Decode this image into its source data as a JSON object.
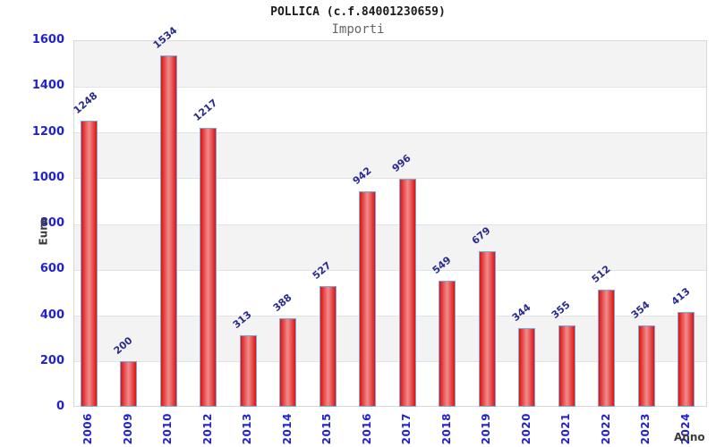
{
  "header": {
    "title": "POLLICA (c.f.84001230659)",
    "subtitle": "Importi"
  },
  "axes": {
    "y_label": "Euro",
    "x_label": "Anno"
  },
  "chart_data": {
    "type": "bar",
    "title": "POLLICA (c.f.84001230659)",
    "subtitle": "Importi",
    "xlabel": "Anno",
    "ylabel": "Euro",
    "categories": [
      "2006",
      "2009",
      "2010",
      "2012",
      "2013",
      "2014",
      "2015",
      "2016",
      "2017",
      "2018",
      "2019",
      "2020",
      "2021",
      "2022",
      "2023",
      "2024"
    ],
    "values": [
      1248,
      200,
      1534,
      1217,
      313,
      388,
      527,
      942,
      996,
      549,
      679,
      344,
      355,
      512,
      354,
      413
    ],
    "ylim": [
      0,
      1600
    ],
    "ytick_step": 200,
    "yticks": [
      0,
      200,
      400,
      600,
      800,
      1000,
      1200,
      1400,
      1600
    ],
    "grid": true,
    "legend_position": "none",
    "colors": {
      "bar_edge_fill": "#e01111",
      "bar_center_fill": "#ef8d8d",
      "bar_border": "#74abdf",
      "tick_label": "#2222cc",
      "value_label": "#2a2a90",
      "band_gray": "#f3f3f3",
      "band_white": "#ffffff",
      "gridline": "#e2e2e2",
      "axis_title": "#3c3c3c",
      "title": "#1a1a1a",
      "subtitle": "#666666"
    }
  }
}
